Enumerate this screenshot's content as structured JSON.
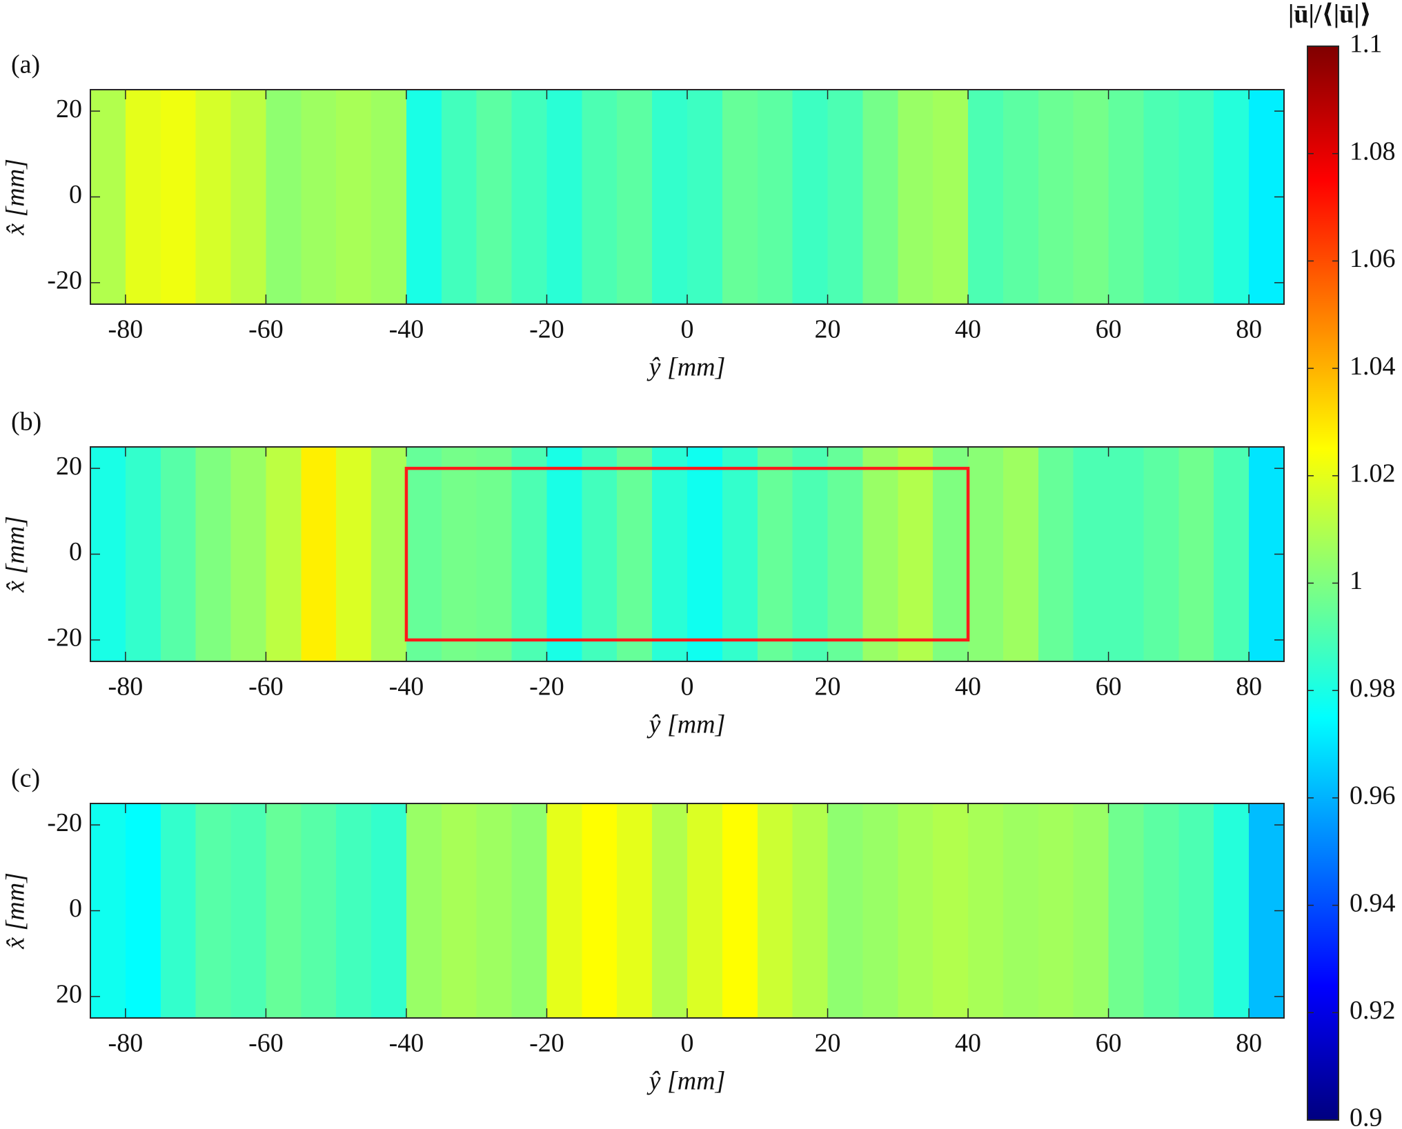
{
  "chart_data": [
    {
      "type": "heatmap",
      "panel_label": "(a)",
      "xlabel": "ŷ [mm]",
      "ylabel": "x̂ [mm]",
      "xlim": [
        -85,
        85
      ],
      "xticks": [
        -80,
        -60,
        -40,
        -20,
        0,
        20,
        40,
        60,
        80
      ],
      "ylim": [
        -25,
        25
      ],
      "yticks": [
        -20,
        0,
        20
      ],
      "x": [
        -82.5,
        -77.5,
        -72.5,
        -67.5,
        -62.5,
        -57.5,
        -52.5,
        -47.5,
        -42.5,
        -37.5,
        -32.5,
        -27.5,
        -22.5,
        -17.5,
        -12.5,
        -7.5,
        -2.5,
        2.5,
        7.5,
        12.5,
        17.5,
        22.5,
        27.5,
        32.5,
        37.5,
        42.5,
        47.5,
        52.5,
        57.5,
        62.5,
        67.5,
        72.5,
        77.5,
        82.5
      ],
      "values": [
        1.01,
        1.02,
        1.022,
        1.017,
        1.012,
        1.003,
        1.006,
        1.008,
        1.006,
        0.98,
        0.988,
        0.993,
        0.988,
        0.983,
        0.99,
        0.993,
        0.985,
        0.987,
        0.995,
        0.993,
        0.987,
        0.99,
        0.998,
        1.005,
        1.007,
        0.99,
        0.993,
        0.996,
        0.998,
        0.994,
        0.99,
        0.988,
        0.982,
        0.972
      ]
    },
    {
      "type": "heatmap",
      "panel_label": "(b)",
      "xlabel": "ŷ [mm]",
      "ylabel": "x̂ [mm]",
      "xlim": [
        -85,
        85
      ],
      "xticks": [
        -80,
        -60,
        -40,
        -20,
        0,
        20,
        40,
        60,
        80
      ],
      "ylim": [
        -25,
        25
      ],
      "yticks": [
        -20,
        0,
        20
      ],
      "x": [
        -82.5,
        -77.5,
        -72.5,
        -67.5,
        -62.5,
        -57.5,
        -52.5,
        -47.5,
        -42.5,
        -37.5,
        -32.5,
        -27.5,
        -22.5,
        -17.5,
        -12.5,
        -7.5,
        -2.5,
        2.5,
        7.5,
        12.5,
        17.5,
        22.5,
        27.5,
        32.5,
        37.5,
        42.5,
        47.5,
        52.5,
        57.5,
        62.5,
        67.5,
        72.5,
        77.5,
        82.5
      ],
      "values": [
        0.98,
        0.985,
        0.992,
        1.0,
        1.005,
        1.012,
        1.028,
        1.018,
        1.008,
        0.995,
        0.998,
        0.997,
        0.99,
        0.98,
        0.988,
        0.995,
        0.983,
        0.978,
        0.985,
        0.995,
        0.99,
        0.995,
        1.005,
        1.01,
        1.0,
        1.002,
        1.006,
        0.995,
        0.99,
        0.99,
        0.993,
        0.997,
        0.99,
        0.97
      ],
      "highlight": {
        "x": [
          -40,
          40
        ],
        "y": [
          -20,
          20
        ],
        "color": "#ff1a1a"
      }
    },
    {
      "type": "heatmap",
      "panel_label": "(c)",
      "xlabel": "ŷ [mm]",
      "ylabel": "x̂ [mm]",
      "xlim": [
        -85,
        85
      ],
      "xticks": [
        -80,
        -60,
        -40,
        -20,
        0,
        20,
        40,
        60,
        80
      ],
      "ylim": [
        25,
        -25
      ],
      "yticks": [
        -20,
        0,
        20
      ],
      "x": [
        -82.5,
        -77.5,
        -72.5,
        -67.5,
        -62.5,
        -57.5,
        -52.5,
        -47.5,
        -42.5,
        -37.5,
        -32.5,
        -27.5,
        -22.5,
        -17.5,
        -12.5,
        -7.5,
        -2.5,
        2.5,
        7.5,
        12.5,
        17.5,
        22.5,
        27.5,
        32.5,
        37.5,
        42.5,
        47.5,
        52.5,
        57.5,
        62.5,
        67.5,
        72.5,
        77.5,
        82.5
      ],
      "values": [
        0.978,
        0.975,
        0.985,
        0.992,
        0.99,
        0.995,
        0.992,
        0.988,
        0.985,
        1.005,
        1.008,
        1.006,
        1.003,
        1.02,
        1.025,
        1.02,
        1.01,
        1.018,
        1.025,
        1.015,
        1.01,
        1.003,
        1.005,
        1.008,
        1.01,
        1.008,
        1.006,
        1.007,
        1.005,
        0.997,
        0.993,
        0.99,
        0.982,
        0.962
      ]
    }
  ],
  "colorbar": {
    "label": "|ū|/⟨|ū|⟩",
    "colormap": "jet",
    "lim": [
      0.9,
      1.1
    ],
    "ticks": [
      0.9,
      0.92,
      0.94,
      0.96,
      0.98,
      1,
      1.02,
      1.04,
      1.06,
      1.08,
      1.1
    ]
  }
}
